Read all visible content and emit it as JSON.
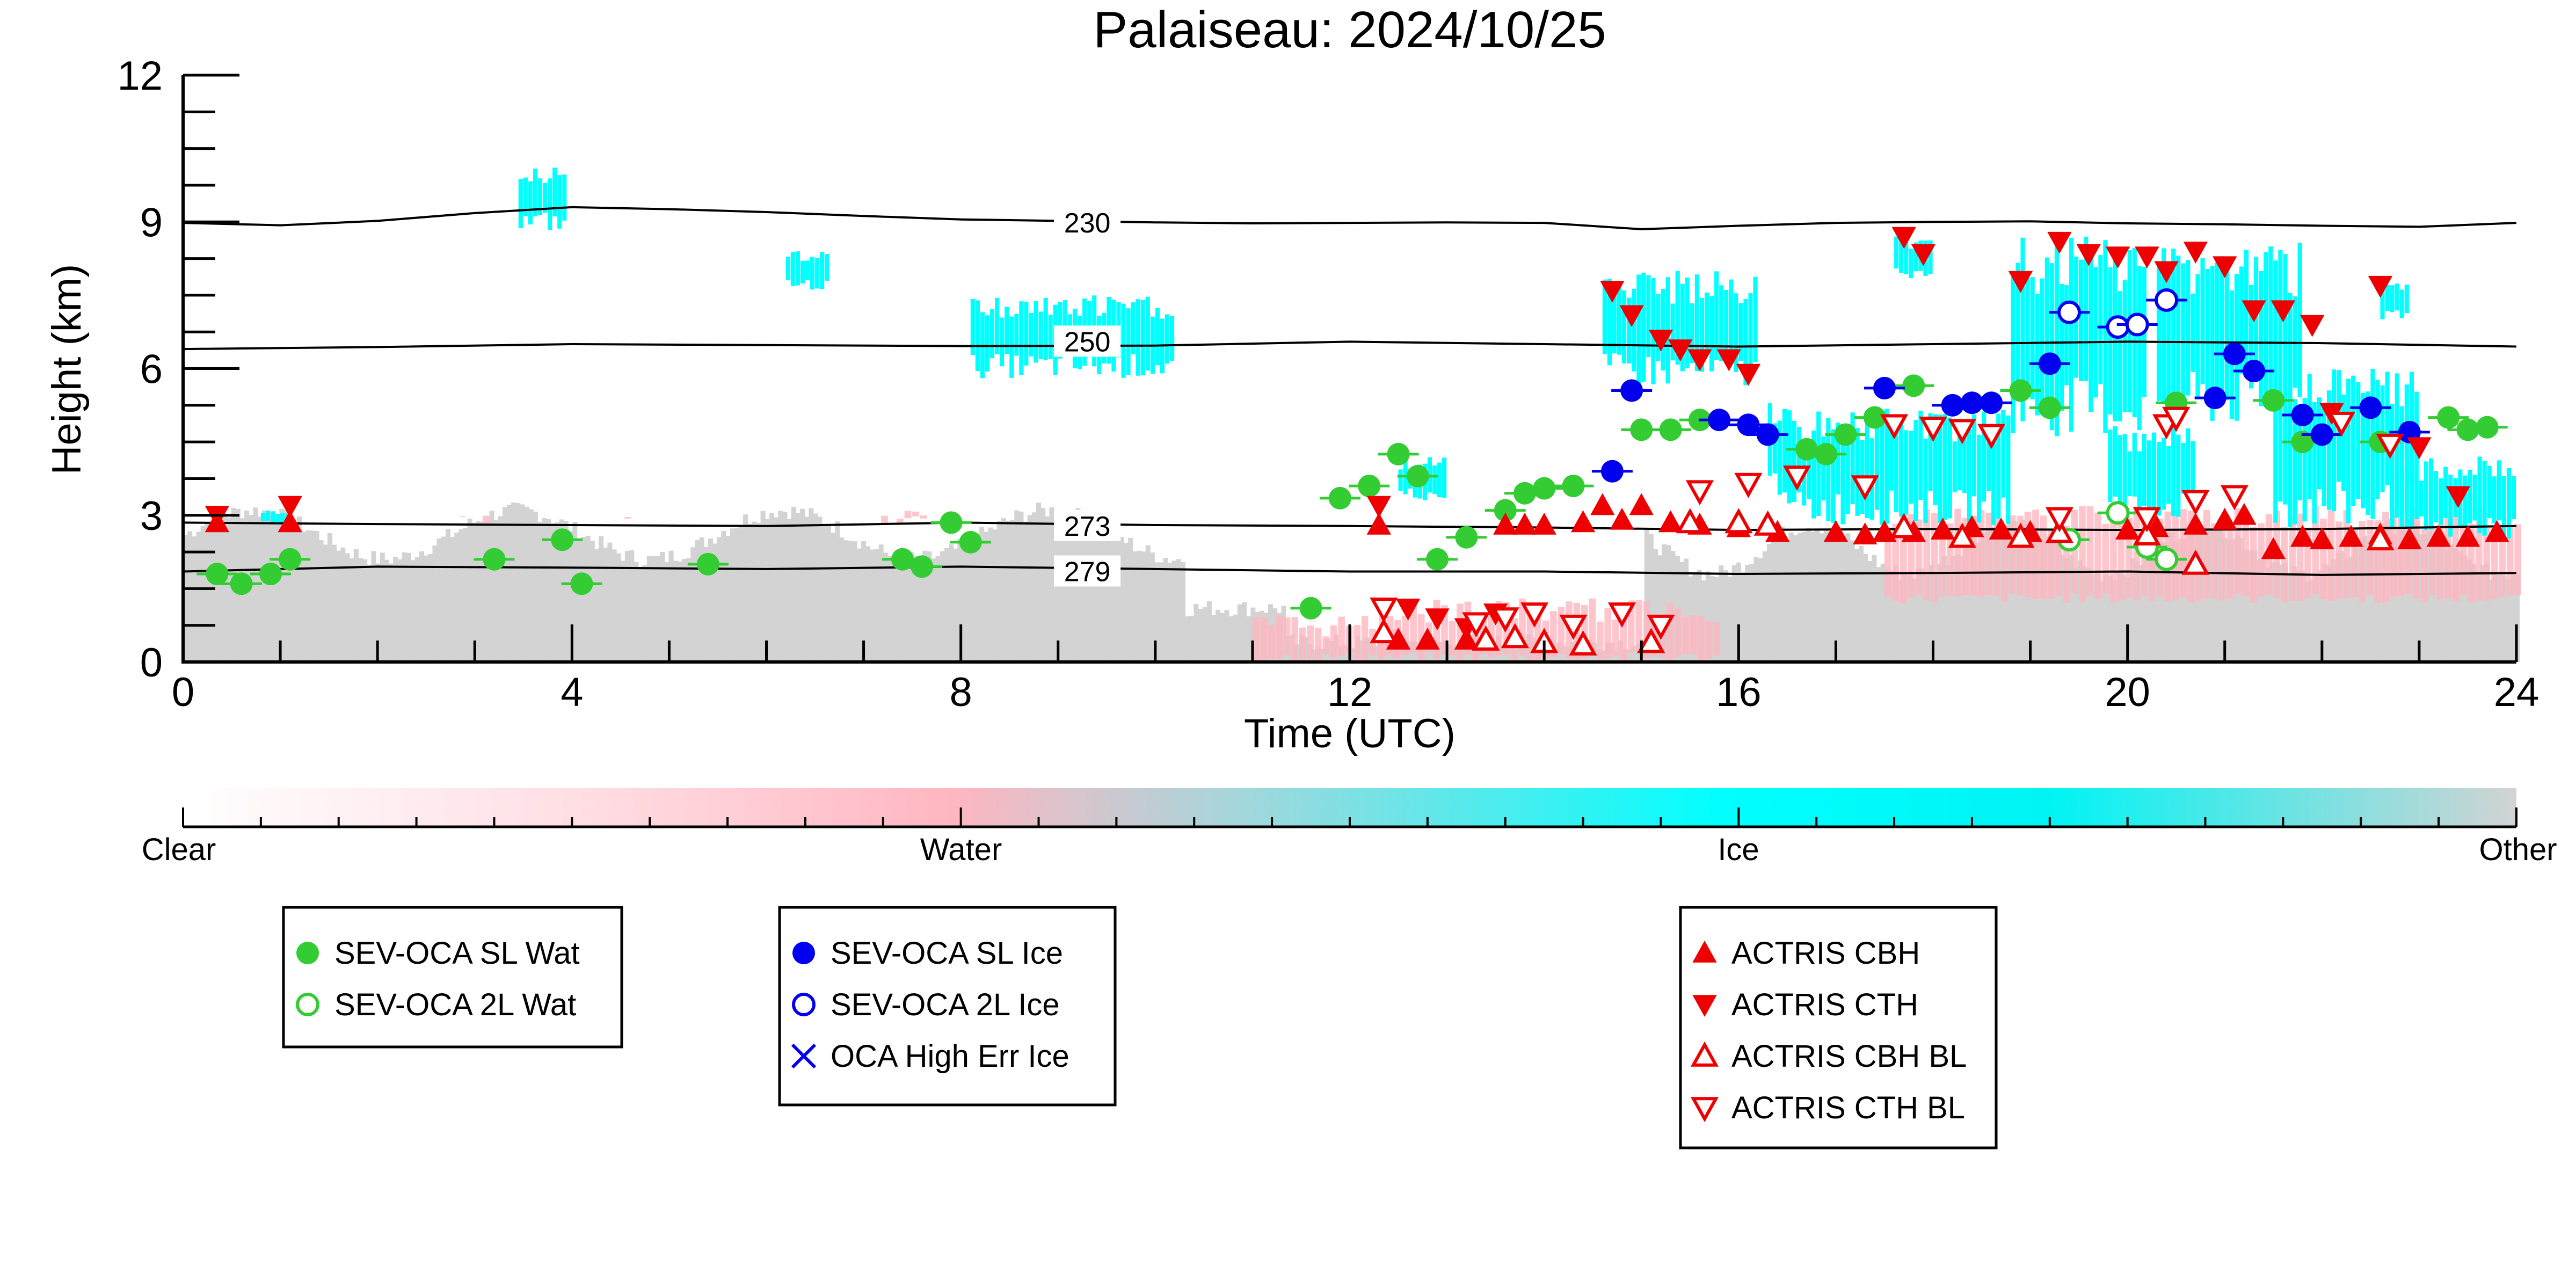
{
  "chart_data": {
    "type": "scatter",
    "title": "Palaiseau: 2024/10/25",
    "xlabel": "Time (UTC)",
    "ylabel": "Height (km)",
    "xlim": [
      0,
      24
    ],
    "ylim": [
      0,
      12
    ],
    "x_ticks": [
      "0",
      "4",
      "8",
      "12",
      "16",
      "20",
      "24"
    ],
    "y_ticks": [
      "0",
      "3",
      "6",
      "9",
      "12"
    ],
    "colorbar": {
      "labels": [
        "Clear",
        "Water",
        "Ice",
        "Other"
      ],
      "colors": [
        "#ffffff",
        "#ffb6c1",
        "#00ffff",
        "#d3d3d3"
      ]
    },
    "isotherms": [
      {
        "label": "230",
        "x": [
          0,
          1,
          2,
          3,
          4,
          5,
          6,
          7,
          8,
          9,
          10,
          11,
          12,
          13,
          14,
          15,
          16,
          17,
          18,
          19,
          20,
          21,
          22,
          23,
          24
        ],
        "y": [
          8.98,
          8.93,
          9.02,
          9.18,
          9.3,
          9.26,
          9.2,
          9.12,
          9.05,
          9.02,
          8.99,
          8.97,
          8.98,
          8.99,
          8.98,
          8.85,
          8.92,
          8.98,
          9.0,
          9.01,
          8.97,
          8.95,
          8.92,
          8.9,
          8.98
        ]
      },
      {
        "label": "250",
        "x": [
          0,
          2,
          4,
          6,
          8,
          10,
          12,
          14,
          16,
          18,
          20,
          22,
          24
        ],
        "y": [
          6.4,
          6.44,
          6.5,
          6.48,
          6.46,
          6.47,
          6.55,
          6.5,
          6.45,
          6.5,
          6.55,
          6.52,
          6.45
        ]
      },
      {
        "label": "273",
        "x": [
          0,
          2,
          4,
          6,
          8,
          10,
          12,
          14,
          16,
          18,
          20,
          22,
          24
        ],
        "y": [
          2.85,
          2.82,
          2.8,
          2.78,
          2.85,
          2.8,
          2.78,
          2.75,
          2.7,
          2.72,
          2.7,
          2.72,
          2.78
        ]
      },
      {
        "label": "279",
        "x": [
          0,
          2,
          4,
          6,
          8,
          10,
          12,
          14,
          16,
          18,
          20,
          22,
          24
        ],
        "y": [
          1.85,
          1.95,
          1.93,
          1.9,
          1.95,
          1.9,
          1.85,
          1.85,
          1.8,
          1.82,
          1.85,
          1.78,
          1.82
        ]
      }
    ],
    "series": [
      {
        "name": "SEV-OCA SL Wat",
        "color": "#33cc33",
        "marker": "filled-circle",
        "x": [
          0.35,
          0.6,
          0.9,
          1.1,
          3.2,
          3.9,
          4.1,
          5.4,
          7.4,
          7.6,
          7.9,
          8.1,
          11.6,
          11.9,
          12.2,
          12.5,
          12.7,
          12.9,
          13.2,
          13.6,
          13.8,
          14.0,
          14.3,
          15.0,
          15.3,
          15.6,
          16.7,
          16.9,
          17.1,
          17.4,
          17.8,
          18.9,
          19.2,
          20.5,
          21.5,
          21.8,
          22.6,
          23.3,
          23.5,
          23.7
        ],
        "y": [
          1.8,
          1.6,
          1.8,
          2.1,
          2.1,
          2.5,
          1.6,
          2.0,
          2.1,
          1.95,
          2.85,
          2.45,
          1.1,
          3.35,
          3.6,
          4.25,
          3.8,
          2.1,
          2.55,
          3.1,
          3.45,
          3.55,
          3.6,
          4.75,
          4.75,
          4.95,
          4.35,
          4.25,
          4.65,
          5.0,
          5.65,
          5.55,
          5.2,
          5.3,
          5.35,
          4.5,
          4.5,
          5.0,
          4.75,
          4.8
        ]
      },
      {
        "name": "SEV-OCA 2L Wat",
        "color": "#33cc33",
        "marker": "open-circle",
        "x": [
          19.4,
          19.9,
          20.2,
          20.4
        ],
        "y": [
          2.5,
          3.05,
          2.35,
          2.1
        ]
      },
      {
        "name": "SEV-OCA SL Ice",
        "color": "#0000ee",
        "marker": "filled-circle",
        "x": [
          14.7,
          14.9,
          15.8,
          16.1,
          16.3,
          17.5,
          18.2,
          18.4,
          18.6,
          19.2,
          20.9,
          21.1,
          21.3,
          21.8,
          22.0,
          22.5,
          22.9
        ],
        "y": [
          3.9,
          5.55,
          4.95,
          4.85,
          4.65,
          5.6,
          5.25,
          5.3,
          5.3,
          6.1,
          5.4,
          6.3,
          5.95,
          5.05,
          4.65,
          5.2,
          4.7
        ]
      },
      {
        "name": "SEV-OCA 2L Ice",
        "color": "#0000ee",
        "marker": "open-circle",
        "x": [
          19.4,
          19.9,
          20.1,
          20.4
        ],
        "y": [
          7.15,
          6.85,
          6.9,
          7.4
        ]
      },
      {
        "name": "OCA High Err Ice",
        "color": "#0000ee",
        "marker": "x",
        "x": [],
        "y": []
      },
      {
        "name": "ACTRIS CBH",
        "color": "#ee0000",
        "marker": "filled-triangle-up",
        "x": [
          0.35,
          1.1,
          12.3,
          12.5,
          12.8,
          13.2,
          13.6,
          13.8,
          14.0,
          14.4,
          14.6,
          14.8,
          15.0,
          15.3,
          15.6,
          16.0,
          16.4,
          17.0,
          17.3,
          17.5,
          17.8,
          18.1,
          18.4,
          18.7,
          19.0,
          20.0,
          20.3,
          20.7,
          21.0,
          21.2,
          21.5,
          21.8,
          22.0,
          22.3,
          22.6,
          22.9,
          23.2,
          23.5,
          23.8
        ],
        "y": [
          2.85,
          2.85,
          2.8,
          0.45,
          0.45,
          0.45,
          2.8,
          2.8,
          2.8,
          2.85,
          3.2,
          2.9,
          3.2,
          2.85,
          2.8,
          2.75,
          2.65,
          2.65,
          2.6,
          2.65,
          2.65,
          2.7,
          2.75,
          2.7,
          2.65,
          2.7,
          2.75,
          2.8,
          2.9,
          3.0,
          2.3,
          2.55,
          2.5,
          2.55,
          2.6,
          2.5,
          2.55,
          2.55,
          2.65
        ]
      },
      {
        "name": "ACTRIS CTH",
        "color": "#ee0000",
        "marker": "filled-triangle-down",
        "x": [
          0.35,
          1.1,
          12.3,
          12.6,
          12.9,
          13.2,
          13.5,
          14.7,
          14.9,
          15.2,
          15.4,
          15.6,
          15.9,
          16.1,
          17.7,
          17.9,
          18.9,
          19.3,
          19.6,
          19.9,
          20.2,
          20.4,
          20.7,
          21.0,
          21.3,
          21.6,
          21.9,
          22.1,
          22.6,
          23.0,
          23.4
        ],
        "y": [
          3.0,
          3.2,
          3.2,
          1.1,
          0.9,
          0.7,
          1.0,
          7.6,
          7.1,
          6.6,
          6.4,
          6.2,
          6.2,
          5.9,
          8.7,
          8.35,
          7.8,
          8.6,
          8.35,
          8.3,
          8.3,
          8.0,
          8.4,
          8.1,
          7.2,
          7.2,
          6.9,
          5.1,
          7.7,
          4.4,
          3.4
        ]
      },
      {
        "name": "ACTRIS CBH BL",
        "color": "#ee0000",
        "marker": "open-triangle-up",
        "x": [
          12.35,
          13.4,
          13.7,
          14.0,
          14.4,
          15.1,
          15.5,
          16.0,
          16.3,
          17.7,
          18.3,
          18.9,
          19.3,
          20.2,
          20.7,
          22.6
        ],
        "y": [
          0.6,
          0.45,
          0.5,
          0.4,
          0.35,
          0.4,
          2.85,
          2.85,
          2.8,
          2.75,
          2.55,
          2.55,
          2.65,
          2.6,
          2.0,
          2.5
        ]
      },
      {
        "name": "ACTRIS CTH BL",
        "color": "#ee0000",
        "marker": "open-triangle-down",
        "x": [
          12.35,
          13.3,
          13.6,
          13.9,
          14.3,
          14.8,
          15.2,
          15.6,
          16.1,
          16.6,
          17.3,
          17.6,
          18.0,
          18.3,
          18.6,
          19.3,
          20.2,
          20.4,
          20.5,
          20.7,
          21.1,
          22.2,
          22.7
        ],
        "y": [
          1.1,
          0.8,
          0.9,
          1.0,
          0.75,
          1.0,
          0.75,
          3.5,
          3.65,
          3.8,
          3.6,
          4.85,
          4.8,
          4.75,
          4.65,
          2.95,
          2.95,
          4.85,
          5.0,
          3.3,
          3.4,
          4.9,
          4.45
        ]
      }
    ],
    "legends": [
      [
        "SEV-OCA SL Wat",
        "SEV-OCA 2L Wat"
      ],
      [
        "SEV-OCA SL Ice",
        "SEV-OCA 2L Ice",
        "OCA High Err Ice"
      ],
      [
        "ACTRIS CBH",
        "ACTRIS CTH",
        "ACTRIS CBH BL",
        "ACTRIS CTH BL"
      ]
    ],
    "grid": false
  }
}
